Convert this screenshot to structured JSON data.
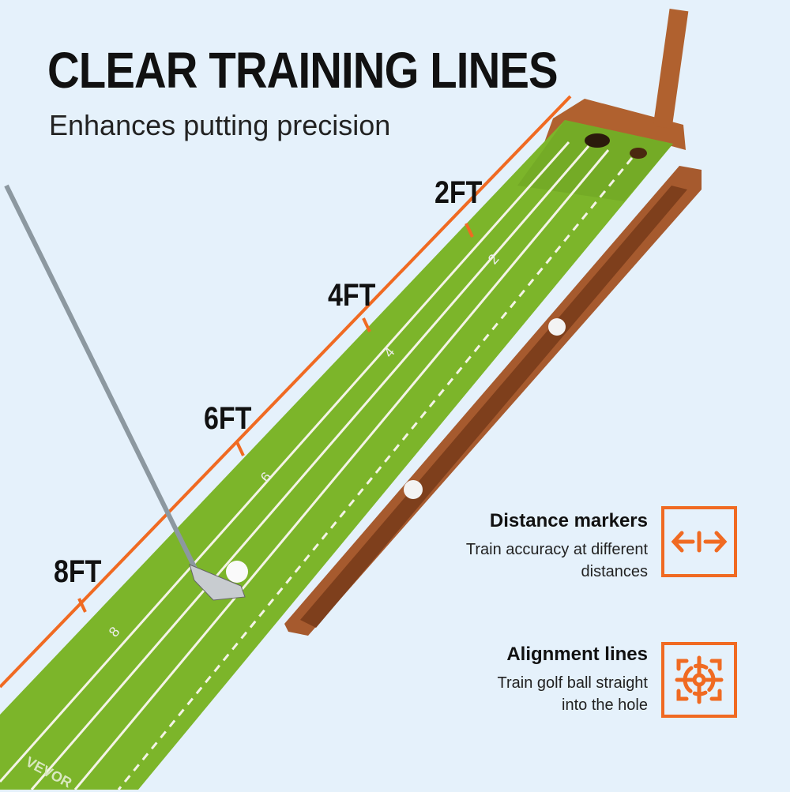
{
  "header": {
    "title": "CLEAR TRAINING LINES",
    "subtitle": "Enhances putting precision"
  },
  "distance_labels": [
    "2FT",
    "4FT",
    "6FT",
    "8FT"
  ],
  "mat_markings": [
    "2",
    "4",
    "6",
    "8"
  ],
  "brand": "VEVOR",
  "features": [
    {
      "title": "Distance markers",
      "description_lines": [
        "Train accuracy at different",
        "distances"
      ],
      "icon": "distance-arrows-icon"
    },
    {
      "title": "Alignment lines",
      "description_lines": [
        "Train golf ball straight",
        "into the hole"
      ],
      "icon": "target-crosshair-icon"
    }
  ],
  "colors": {
    "accent": "#f06a22",
    "background": "#e5f1fb",
    "mat": "#7cb52a",
    "wood": "#a65a2e"
  }
}
